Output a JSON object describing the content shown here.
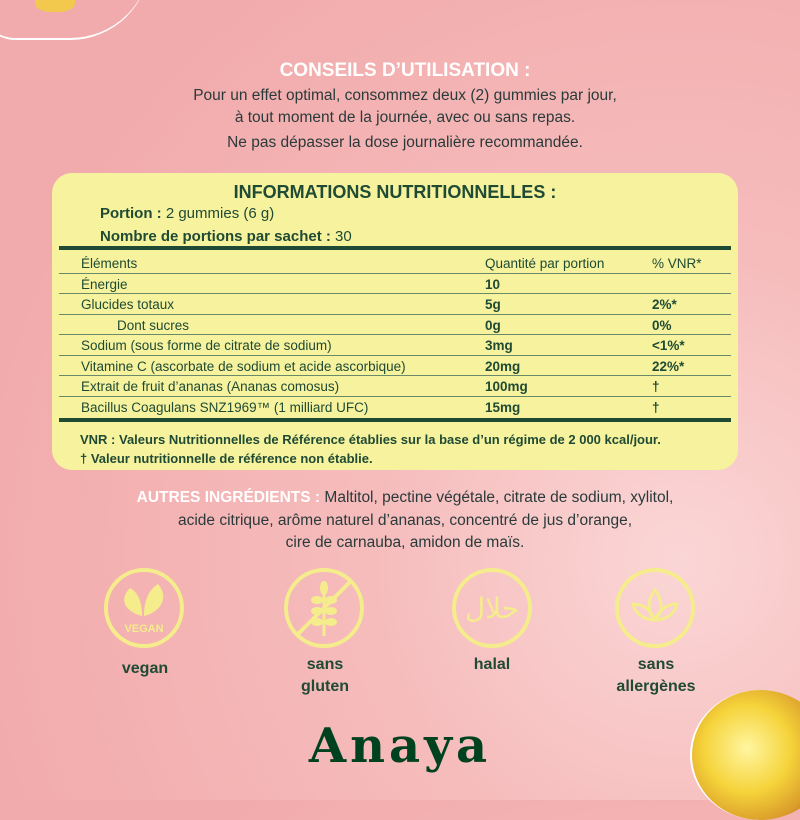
{
  "conseils": {
    "title": "CONSEILS D’UTILISATION :",
    "lines": [
      "Pour un effet optimal, consommez deux (2) gummies par jour,",
      "à tout moment de la journée, avec ou sans repas.",
      "Ne pas dépasser la dose journalière recommandée."
    ]
  },
  "nutrition": {
    "title": "INFORMATIONS NUTRITIONNELLES :",
    "portion_label": "Portion :",
    "portion_value": "2 gummies (6 g)",
    "servings_label": "Nombre de portions par sachet :",
    "servings_value": "30",
    "headers": [
      "Éléments",
      "Quantité par portion",
      "% VNR*"
    ],
    "rows": [
      [
        "Énergie",
        "10",
        ""
      ],
      [
        "Glucides totaux",
        "5g",
        "2%*"
      ],
      [
        "Dont sucres",
        "0g",
        "0%"
      ],
      [
        "Sodium (sous forme de citrate de sodium)",
        "3mg",
        "<1%*"
      ],
      [
        "Vitamine C (ascorbate de sodium et acide ascorbique)",
        "20mg",
        "22%*"
      ],
      [
        "Extrait de fruit d’ananas (Ananas comosus)",
        "100mg",
        "†"
      ],
      [
        "Bacillus Coagulans SNZ1969™ (1 milliard UFC)",
        "15mg",
        "†"
      ]
    ],
    "footnotes": [
      "VNR : Valeurs Nutritionnelles de Référence établies sur la base d’un régime de 2 000 kcal/jour.",
      "† Valeur nutritionnelle de référence non établie."
    ]
  },
  "ingredients": {
    "label": "AUTRES INGRÉDIENTS :",
    "lines": [
      "Maltitol, pectine végétale, citrate de sodium, xylitol,",
      "acide citrique, arôme naturel d’ananas, concentré de jus d’orange,",
      "cire de carnauba, amidon de maïs."
    ]
  },
  "badges": [
    {
      "icon": "vegan-leaf-icon",
      "icon_text": "VEGAN",
      "label": [
        "vegan"
      ]
    },
    {
      "icon": "no-gluten-wheat-icon",
      "label": [
        "sans",
        "gluten"
      ]
    },
    {
      "icon": "halal-icon",
      "icon_text": "حلال",
      "label": [
        "halal"
      ]
    },
    {
      "icon": "allergen-free-lotus-icon",
      "label": [
        "sans",
        "allergènes"
      ]
    }
  ],
  "brand": "Anaya",
  "colors": {
    "background": "#f4b4b4",
    "card": "#f6f29e",
    "text_green": "#1f4a34",
    "icon_yellow": "#f5ec8c",
    "logo": "#00421f"
  }
}
